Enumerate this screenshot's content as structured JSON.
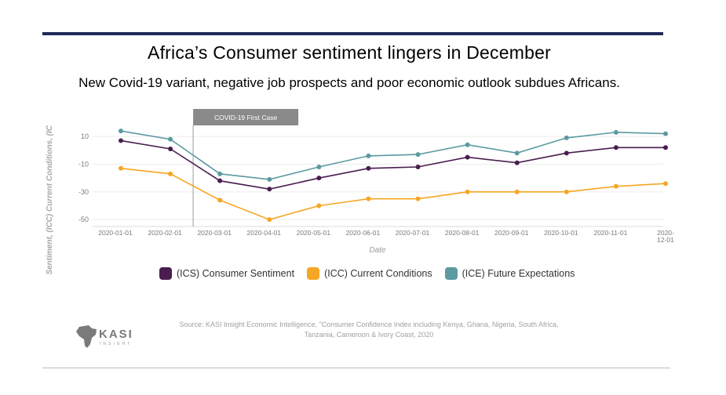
{
  "slide": {
    "title": "Africa’s Consumer sentiment lingers in December",
    "subtitle": "New Covid-19 variant, negative job prospects and poor economic outlook subdues Africans.",
    "source": "Source: KASI Insight Economic Intelligence, \"Consumer Confidence Index including Kenya, Ghana, Nigeria, South Africa, Tanzania, Cameroon & Ivory Coast, 2020",
    "logo_text": "KASI",
    "logo_sub": "INSIGHT"
  },
  "chart_data": {
    "type": "line",
    "xlabel": "Date",
    "ylabel": "Sentiment, (ICC) Current Conditions, (IC",
    "ylim": [
      -55,
      18
    ],
    "yticks": [
      10,
      -10,
      -30,
      -50
    ],
    "categories": [
      "2020-01-01",
      "2020-02-01",
      "2020-03-01",
      "2020-04-01",
      "2020-05-01",
      "2020-06-01",
      "2020-07-01",
      "2020-08-01",
      "2020-09-01",
      "2020-10-01",
      "2020-11-01",
      "2020-12-01"
    ],
    "x_tick_labels": [
      "2020-01-01",
      "2020-02-01",
      "2020-03-01",
      "2020-04-01",
      "2020-05-01",
      "2020-06-01",
      "2020-07-01",
      "2020-08-01",
      "2020-09-01",
      "2020-10-01",
      "2020-11-01",
      "2020-12-01"
    ],
    "annotation": {
      "label": "COVID-19 First Case",
      "x": "2020-02-01"
    },
    "series": [
      {
        "name": "(ICS) Consumer Sentiment",
        "color": "#4a1d4f",
        "values": [
          7,
          1,
          -22,
          -28,
          -20,
          -13,
          -12,
          -5,
          -9,
          -2,
          2,
          2
        ]
      },
      {
        "name": "(ICC) Current Conditions",
        "color": "#f5a623",
        "values": [
          -13,
          -17,
          -36,
          -50,
          -40,
          -35,
          -35,
          -30,
          -30,
          -30,
          -26,
          -24
        ]
      },
      {
        "name": "(ICE) Future Expectations",
        "color": "#5b9aa0",
        "values": [
          14,
          8,
          -17,
          -21,
          -12,
          -4,
          -3,
          4,
          -2,
          9,
          13,
          12
        ]
      }
    ]
  }
}
